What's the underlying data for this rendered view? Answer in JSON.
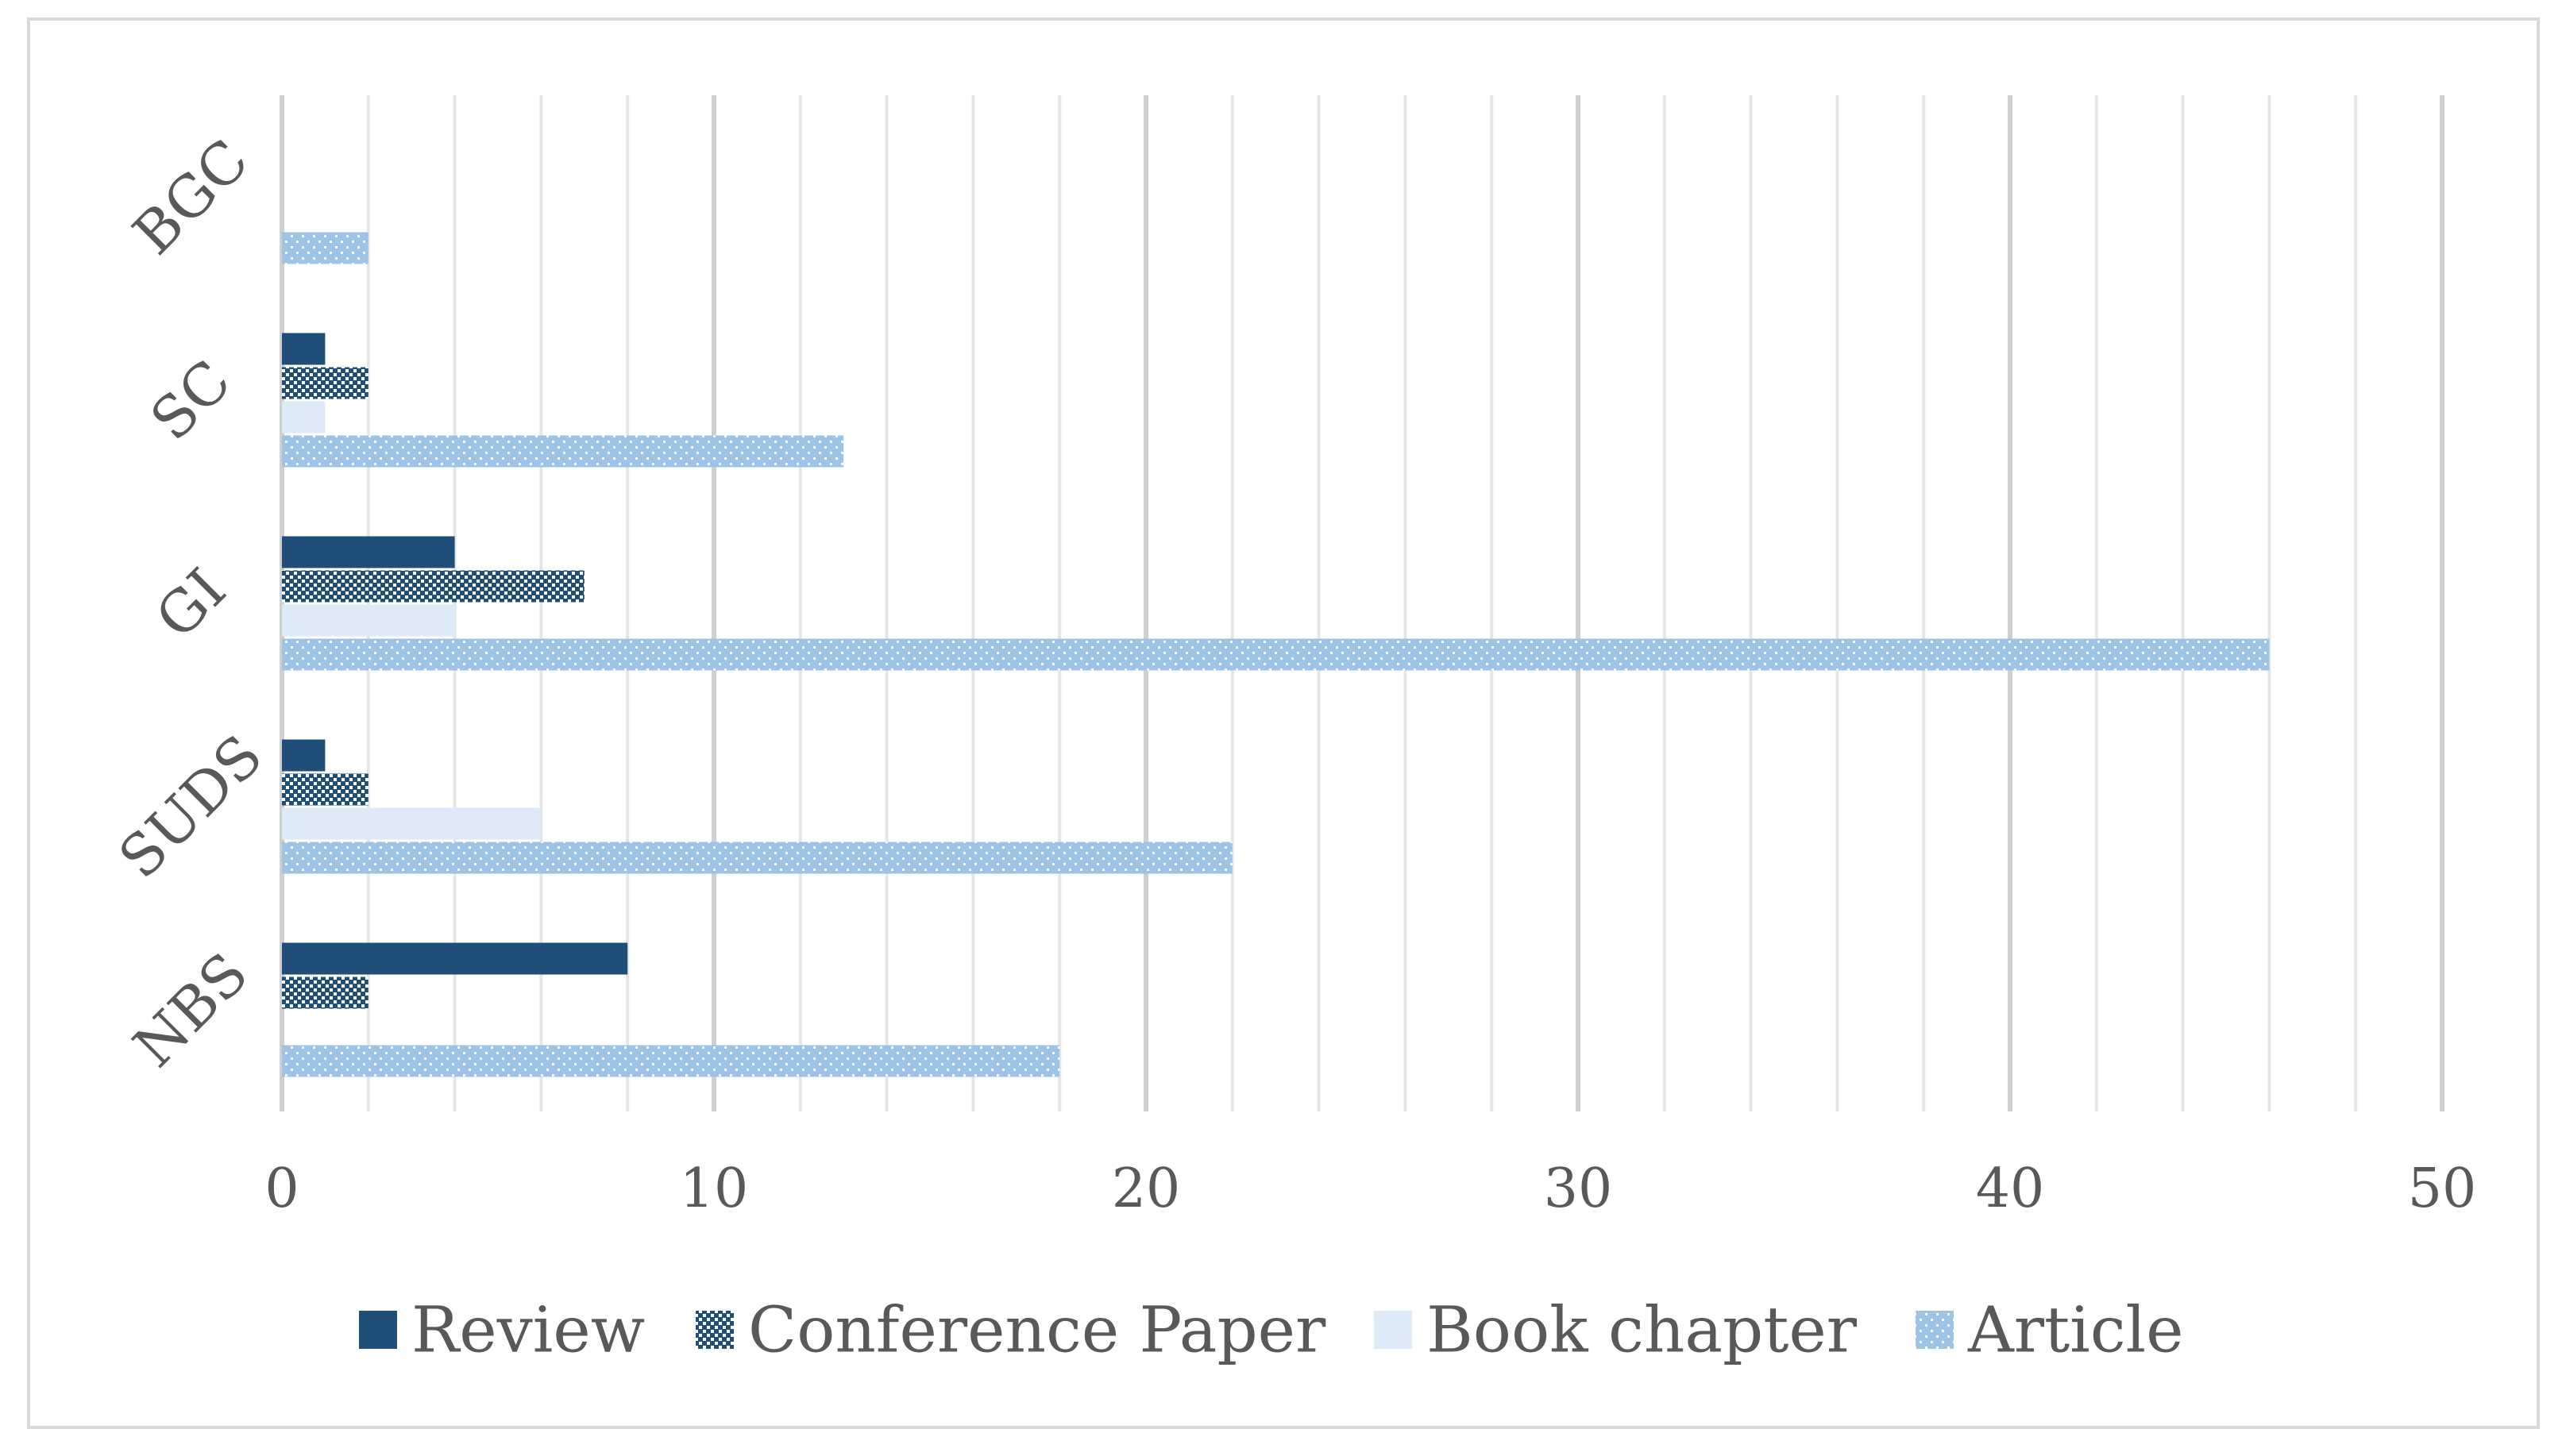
{
  "chart_data": {
    "type": "bar",
    "orientation": "horizontal",
    "categories": [
      "NBS",
      "SUDS",
      "GI",
      "SC",
      "BGC"
    ],
    "series": [
      {
        "name": "Review",
        "values": [
          8,
          1,
          4,
          1,
          0
        ],
        "color": "#1f4e79",
        "pattern": "solid"
      },
      {
        "name": "Conference Paper",
        "values": [
          2,
          2,
          7,
          2,
          0
        ],
        "color": "#1f4e79",
        "pattern": "checker"
      },
      {
        "name": "Book chapter",
        "values": [
          0,
          6,
          4,
          1,
          0
        ],
        "color": "#deebf7",
        "pattern": "solid"
      },
      {
        "name": "Article",
        "values": [
          18,
          22,
          46,
          13,
          2
        ],
        "color": "#9dc3e6",
        "pattern": "dots"
      }
    ],
    "xlim": [
      0,
      50
    ],
    "xticks": [
      0,
      10,
      20,
      30,
      40,
      50
    ],
    "minor_step": 2,
    "grid": true,
    "legend_position": "bottom",
    "title": "",
    "xlabel": "",
    "ylabel": ""
  }
}
